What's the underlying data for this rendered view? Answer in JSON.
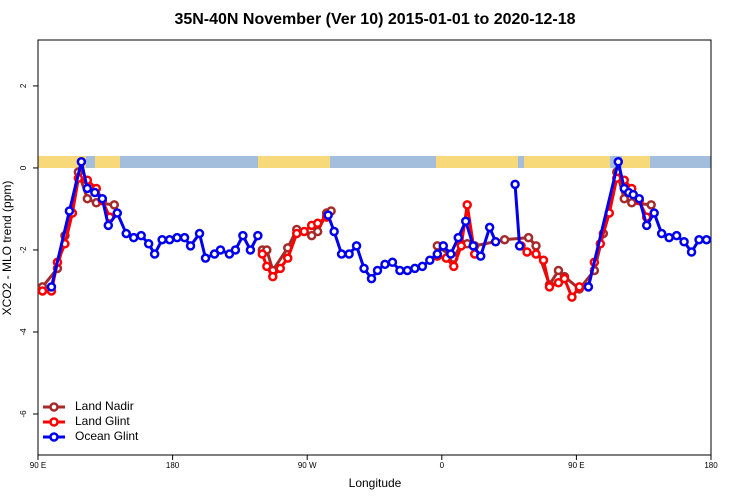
{
  "chart_data": {
    "type": "line",
    "title": "35N-40N November (Ver 10)   2015-01-01 to 2020-12-18",
    "x_label": "Longitude",
    "y_label": "XCO2 - MLO trend (ppm)",
    "xlim": [
      90,
      540
    ],
    "xticks": [
      {
        "value": 90,
        "label": "90 E"
      },
      180,
      {
        "value": 270,
        "label": "90 W"
      },
      {
        "value": 360,
        "label": "0"
      },
      {
        "value": 450,
        "label": "90 E"
      },
      {
        "value": 540,
        "label": "180"
      }
    ],
    "ylim": [
      -7,
      3.12
    ],
    "yticks": [
      -6,
      -4,
      -2,
      0,
      2
    ],
    "legend": "bottom-left",
    "series": [
      {
        "name": "Land Nadir",
        "color": "#a52a2a",
        "x": [
          93,
          103,
          108,
          117,
          123,
          129,
          141,
          null,
          240,
          243,
          247,
          257,
          263,
          273,
          277,
          283,
          286,
          null,
          357,
          368,
          373,
          377,
          382,
          402,
          418,
          423,
          432,
          438,
          442,
          452,
          462,
          468,
          477,
          482,
          487,
          500
        ],
        "values": [
          -2.9,
          -2.45,
          -1.65,
          -0.1,
          -0.75,
          -0.85,
          -0.9,
          null,
          -2.0,
          -2.0,
          -2.5,
          -1.95,
          -1.5,
          -1.65,
          -1.55,
          -1.1,
          -1.05,
          null,
          -1.9,
          -2.2,
          -1.85,
          -1.85,
          -1.9,
          -1.75,
          -1.7,
          -1.9,
          -2.85,
          -2.5,
          -2.65,
          -2.95,
          -2.5,
          -1.6,
          -0.1,
          -0.75,
          -0.85,
          -0.9
        ]
      },
      {
        "name": "Land Glint",
        "color": "#ff0000",
        "x": [
          93,
          99,
          103,
          108,
          113,
          117,
          123,
          129,
          133,
          138,
          null,
          240,
          243,
          247,
          252,
          257,
          263,
          268,
          273,
          277,
          283,
          null,
          357,
          363,
          368,
          373,
          377,
          382,
          null,
          413,
          417,
          423,
          428,
          432,
          438,
          442,
          447,
          452,
          458,
          462,
          466,
          472,
          477,
          482,
          487,
          492,
          497
        ],
        "values": [
          -3.0,
          -3.0,
          -2.3,
          -1.85,
          -1.1,
          -0.25,
          -0.3,
          -0.5,
          -0.8,
          -1.2,
          null,
          -2.1,
          -2.4,
          -2.65,
          -2.45,
          -2.2,
          -1.6,
          -1.55,
          -1.4,
          -1.35,
          -1.2,
          null,
          -2.15,
          -2.2,
          -2.4,
          -1.9,
          -0.9,
          -2.1,
          null,
          -1.9,
          -2.05,
          -2.1,
          -2.25,
          -2.9,
          -2.8,
          -2.7,
          -3.15,
          -2.9,
          -2.9,
          -2.3,
          -1.85,
          -1.1,
          -0.25,
          -0.3,
          -0.5,
          -0.8,
          -1.2
        ]
      },
      {
        "name": "Ocean Glint",
        "color": "#0000ee",
        "x": [
          99,
          111,
          119,
          123,
          128,
          133,
          137,
          143,
          149,
          154,
          159,
          164,
          168,
          173,
          178,
          183,
          188,
          192,
          198,
          202,
          208,
          212,
          218,
          222,
          227,
          232,
          237,
          null,
          284,
          288,
          293,
          298,
          303,
          308,
          313,
          317,
          322,
          327,
          332,
          337,
          342,
          347,
          352,
          357,
          361,
          366,
          371,
          376,
          381,
          386,
          392,
          396,
          null,
          409,
          412,
          null,
          458,
          478,
          482,
          485,
          488,
          492,
          497,
          502,
          507,
          512,
          517,
          522,
          527,
          532,
          537
        ],
        "values": [
          -2.9,
          -1.05,
          0.15,
          -0.5,
          -0.6,
          -0.75,
          -1.4,
          -1.1,
          -1.6,
          -1.7,
          -1.65,
          -1.85,
          -2.1,
          -1.75,
          -1.75,
          -1.7,
          -1.7,
          -1.9,
          -1.6,
          -2.2,
          -2.1,
          -2.0,
          -2.1,
          -2.0,
          -1.65,
          -2.0,
          -1.65,
          null,
          -1.15,
          -1.55,
          -2.1,
          -2.1,
          -1.9,
          -2.45,
          -2.7,
          -2.5,
          -2.35,
          -2.3,
          -2.5,
          -2.5,
          -2.45,
          -2.4,
          -2.25,
          -2.1,
          -1.9,
          -2.1,
          -1.7,
          -1.3,
          -1.9,
          -2.15,
          -1.45,
          -1.8,
          null,
          -0.4,
          -1.9,
          null,
          -2.9,
          0.15,
          -0.5,
          -0.6,
          -0.65,
          -0.75,
          -1.4,
          -1.1,
          -1.6,
          -1.7,
          -1.65,
          -1.8,
          -2.05,
          -1.75,
          -1.75
        ]
      }
    ]
  }
}
